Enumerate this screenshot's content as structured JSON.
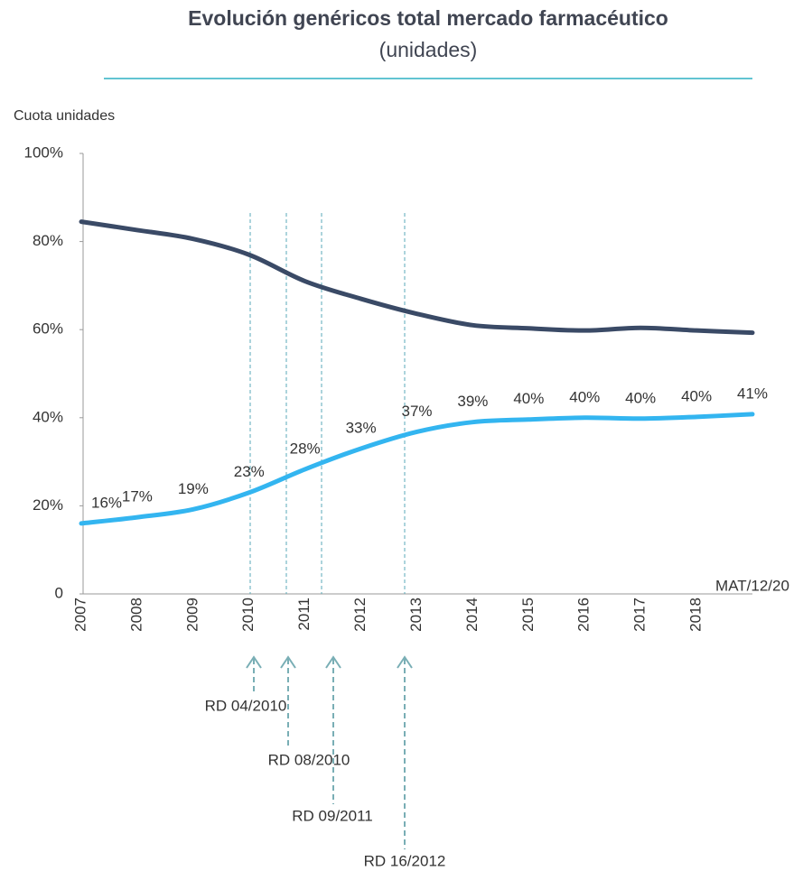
{
  "chart_data": {
    "type": "line",
    "title": "Evolución genéricos total mercado farmacéutico",
    "subtitle": "(unidades)",
    "y_label": "Cuota unidades",
    "categories": [
      "2007",
      "2008",
      "2009",
      "2010",
      "2011",
      "2012",
      "2013",
      "2014",
      "2015",
      "2016",
      "2017",
      "2018",
      "MAT/12/20"
    ],
    "series": [
      {
        "color": "#3a4a66",
        "values": [
          84.5,
          82.6,
          80.6,
          77,
          71,
          67,
          63.6,
          61,
          60.3,
          59.8,
          60.4,
          59.8,
          59.3
        ]
      },
      {
        "color": "#33b5f0",
        "values": [
          16,
          17.4,
          19.2,
          23,
          28.3,
          33,
          36.8,
          39,
          39.6,
          40,
          39.8,
          40.2,
          40.8
        ],
        "value_labels": [
          "16%",
          "17%",
          "19%",
          "23%",
          "28%",
          "33%",
          "37%",
          "39%",
          "40%",
          "40%",
          "40%",
          "40%",
          "41%"
        ]
      }
    ],
    "ylim": [
      0,
      100
    ],
    "yticks": [
      0,
      {
        "value": 20,
        "label": "20%"
      },
      {
        "value": 40,
        "label": "40%"
      },
      {
        "value": 60,
        "label": "60%"
      },
      {
        "value": 80,
        "label": "80%"
      },
      {
        "value": 100,
        "label": "100%"
      }
    ],
    "annotations": [
      "RD 04/2010",
      "RD 08/2010",
      "RD 09/2011",
      "RD 16/2012"
    ]
  }
}
